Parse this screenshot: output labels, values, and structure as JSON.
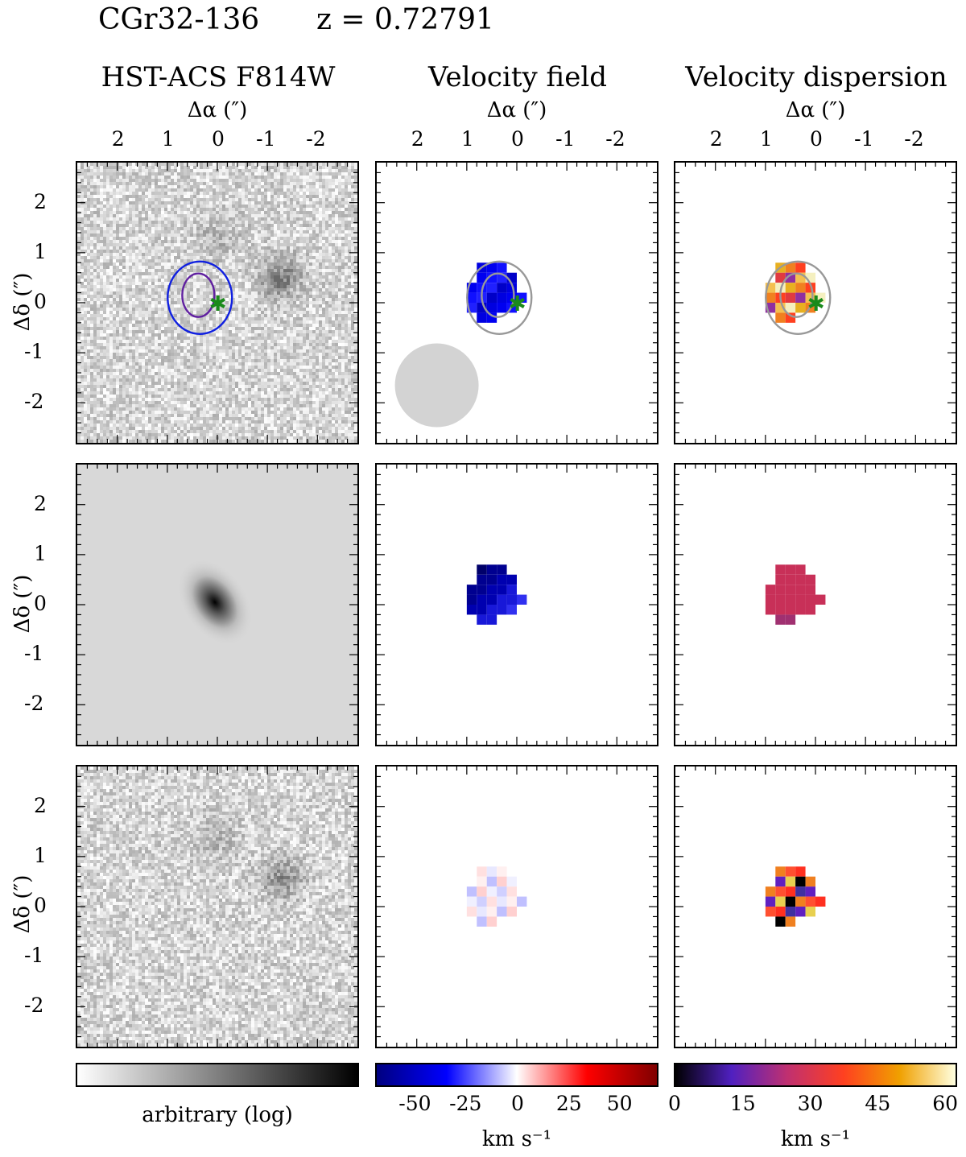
{
  "header": {
    "object_name": "CGr32-136",
    "redshift_label": "z = 0.72791"
  },
  "columns": [
    {
      "title": "HST-ACS F814W"
    },
    {
      "title": "Velocity field"
    },
    {
      "title": "Velocity dispersion"
    }
  ],
  "axes": {
    "x_label": "Δα (″)",
    "y_label": "Δδ (″)",
    "x_ticks": [
      "2",
      "1",
      "0",
      "-1",
      "-2"
    ],
    "y_ticks": [
      "2",
      "1",
      "0",
      "-1",
      "-2"
    ]
  },
  "colorbars": {
    "image": {
      "label": "arbitrary (log)",
      "ticks": [],
      "colors": [
        "#ffffff",
        "#000000"
      ]
    },
    "velocity": {
      "label": "km s⁻¹",
      "ticks": [
        "-50",
        "-25",
        "0",
        "25",
        "50"
      ],
      "range": [
        -70,
        70
      ],
      "colors": [
        "#000080",
        "#0000ff",
        "#ffffff",
        "#ff0000",
        "#800000"
      ]
    },
    "dispersion": {
      "label": "km s⁻¹",
      "ticks": [
        "0",
        "15",
        "30",
        "45",
        "60"
      ],
      "range": [
        0,
        63
      ],
      "colors": [
        "#000000",
        "#5020c0",
        "#c03070",
        "#ff4020",
        "#f0a000",
        "#ffffe0"
      ]
    }
  },
  "chart_data": [
    {
      "type": "heatmap",
      "panel": "row1-col1",
      "description_of_content": "HST image with contours",
      "xlim": [
        2.8,
        -2.8
      ],
      "ylim": [
        -2.8,
        2.8
      ]
    },
    {
      "type": "heatmap",
      "panel": "row1-col2",
      "xlim": [
        2.8,
        -2.8
      ],
      "ylim": [
        -2.8,
        2.8
      ]
    },
    {
      "type": "heatmap",
      "panel": "row1-col3",
      "xlim": [
        2.8,
        -2.8
      ],
      "ylim": [
        -2.8,
        2.8
      ]
    },
    {
      "type": "heatmap",
      "panel": "row2-col1",
      "xlim": [
        2.8,
        -2.8
      ],
      "ylim": [
        -2.8,
        2.8
      ]
    },
    {
      "type": "heatmap",
      "panel": "row2-col2",
      "xlim": [
        2.8,
        -2.8
      ],
      "ylim": [
        -2.8,
        2.8
      ]
    },
    {
      "type": "heatmap",
      "panel": "row2-col3",
      "xlim": [
        2.8,
        -2.8
      ],
      "ylim": [
        -2.8,
        2.8
      ]
    },
    {
      "type": "heatmap",
      "panel": "row3-col1",
      "xlim": [
        2.8,
        -2.8
      ],
      "ylim": [
        -2.8,
        2.8
      ]
    },
    {
      "type": "heatmap",
      "panel": "row3-col2",
      "xlim": [
        2.8,
        -2.8
      ],
      "ylim": [
        -2.8,
        2.8
      ]
    },
    {
      "type": "heatmap",
      "panel": "row3-col3",
      "xlim": [
        2.8,
        -2.8
      ],
      "ylim": [
        -2.8,
        2.8
      ]
    }
  ]
}
